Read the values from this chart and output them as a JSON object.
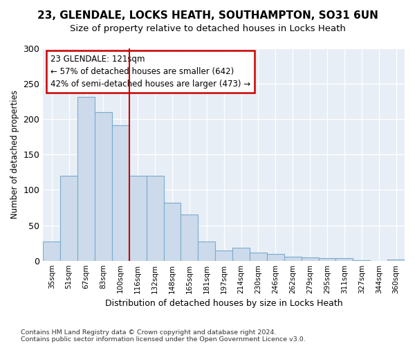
{
  "title_line1": "23, GLENDALE, LOCKS HEATH, SOUTHAMPTON, SO31 6UN",
  "title_line2": "Size of property relative to detached houses in Locks Heath",
  "xlabel": "Distribution of detached houses by size in Locks Heath",
  "ylabel": "Number of detached properties",
  "bar_color": "#ccdaeb",
  "bar_edge_color": "#7aabcc",
  "background_color": "#e8eef6",
  "categories": [
    "35sqm",
    "51sqm",
    "67sqm",
    "83sqm",
    "100sqm",
    "116sqm",
    "132sqm",
    "148sqm",
    "165sqm",
    "181sqm",
    "197sqm",
    "214sqm",
    "230sqm",
    "246sqm",
    "262sqm",
    "279sqm",
    "295sqm",
    "311sqm",
    "327sqm",
    "344sqm",
    "360sqm"
  ],
  "values": [
    27,
    120,
    232,
    210,
    191,
    120,
    120,
    82,
    65,
    27,
    14,
    18,
    11,
    9,
    6,
    5,
    4,
    4,
    1,
    0,
    2
  ],
  "vline_x_index": 5,
  "vline_color": "#cc0000",
  "annotation_text": "23 GLENDALE: 121sqm\n← 57% of detached houses are smaller (642)\n42% of semi-detached houses are larger (473) →",
  "annotation_box_color": "#ffffff",
  "annotation_box_edge": "#cc0000",
  "ylim": [
    0,
    300
  ],
  "yticks": [
    0,
    50,
    100,
    150,
    200,
    250,
    300
  ],
  "footer_line1": "Contains HM Land Registry data © Crown copyright and database right 2024.",
  "footer_line2": "Contains public sector information licensed under the Open Government Licence v3.0."
}
